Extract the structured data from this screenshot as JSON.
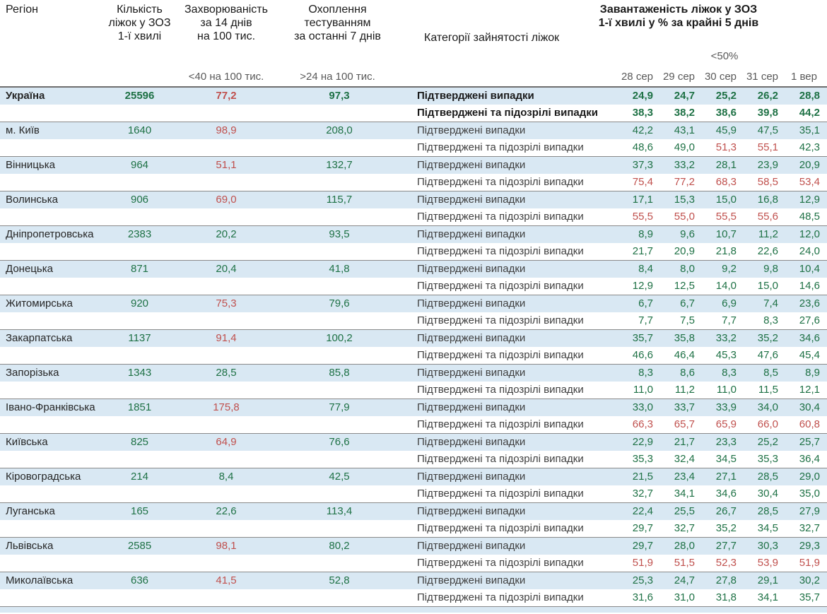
{
  "colors": {
    "green": "#1e7145",
    "red": "#c0504d",
    "row_highlight_blue": "#d9e8f3",
    "separator_gray": "#8a8a8a",
    "header_text": "#1a1a1a",
    "subheader_gray": "#595959"
  },
  "header": {
    "region": "Регіон",
    "beds": "Кількість\nліжок у ЗОЗ\n1-ї хвилі",
    "incidence": "Захворюваність\nза 14 днів\nна 100 тис.",
    "testing": "Охоплення\nтестуванням\nза останні 7 днів",
    "categories": "Категорії зайнятості ліжок",
    "occupancy": "Завантаженість ліжок у ЗОЗ\n1-ї хвилі у % за крайні 5 днів",
    "norms": {
      "incidence": "<40 на 100 тис.",
      "testing": ">24 на 100 тис.",
      "occupancy": "<50%"
    }
  },
  "chart_data": {
    "type": "table",
    "date_columns": [
      "28 сер",
      "29 сер",
      "30 сер",
      "31 сер",
      "1 вер"
    ],
    "category_labels": {
      "confirmed": "Підтверджені випадки",
      "confirmed_suspected": "Підтверджені та підозрілі випадки"
    },
    "thresholds": {
      "incidence_red_at": 40,
      "testing_green_above": 24,
      "occupancy_red_at": 50
    },
    "rows": [
      {
        "name": "Україна",
        "bold": true,
        "beds": 25596,
        "incidence": 77.2,
        "testing": 97.3,
        "confirmed": [
          24.9,
          24.7,
          25.2,
          26.2,
          28.8
        ],
        "confirmed_suspected": [
          38.3,
          38.2,
          38.6,
          39.8,
          44.2
        ]
      },
      {
        "name": "м. Київ",
        "beds": 1640,
        "incidence": 98.9,
        "testing": 208.0,
        "confirmed": [
          42.2,
          43.1,
          45.9,
          47.5,
          35.1
        ],
        "confirmed_suspected": [
          48.6,
          49.0,
          51.3,
          55.1,
          42.3
        ]
      },
      {
        "name": "Вінницька",
        "beds": 964,
        "incidence": 51.1,
        "testing": 132.7,
        "confirmed": [
          37.3,
          33.2,
          28.1,
          23.9,
          20.9
        ],
        "confirmed_suspected": [
          75.4,
          77.2,
          68.3,
          58.5,
          53.4
        ]
      },
      {
        "name": "Волинська",
        "beds": 906,
        "incidence": 69.0,
        "testing": 115.7,
        "confirmed": [
          17.1,
          15.3,
          15.0,
          16.8,
          12.9
        ],
        "confirmed_suspected": [
          55.5,
          55.0,
          55.5,
          55.6,
          48.5
        ]
      },
      {
        "name": "Дніпропетровська",
        "beds": 2383,
        "incidence": 20.2,
        "testing": 93.5,
        "confirmed": [
          8.9,
          9.6,
          10.7,
          11.2,
          12.0
        ],
        "confirmed_suspected": [
          21.7,
          20.9,
          21.8,
          22.6,
          24.0
        ]
      },
      {
        "name": "Донецька",
        "beds": 871,
        "incidence": 20.4,
        "testing": 41.8,
        "confirmed": [
          8.4,
          8.0,
          9.2,
          9.8,
          10.4
        ],
        "confirmed_suspected": [
          12.9,
          12.5,
          14.0,
          15.0,
          14.6
        ]
      },
      {
        "name": "Житомирська",
        "beds": 920,
        "incidence": 75.3,
        "testing": 79.6,
        "confirmed": [
          6.7,
          6.7,
          6.9,
          7.4,
          23.6
        ],
        "confirmed_suspected": [
          7.7,
          7.5,
          7.7,
          8.3,
          27.6
        ]
      },
      {
        "name": "Закарпатська",
        "beds": 1137,
        "incidence": 91.4,
        "testing": 100.2,
        "confirmed": [
          35.7,
          35.8,
          33.2,
          35.2,
          34.6
        ],
        "confirmed_suspected": [
          46.6,
          46.4,
          45.3,
          47.6,
          45.4
        ]
      },
      {
        "name": "Запорізька",
        "beds": 1343,
        "incidence": 28.5,
        "testing": 85.8,
        "confirmed": [
          8.3,
          8.6,
          8.3,
          8.5,
          8.9
        ],
        "confirmed_suspected": [
          11.0,
          11.2,
          11.0,
          11.5,
          12.1
        ]
      },
      {
        "name": "Івано-Франківська",
        "beds": 1851,
        "incidence": 175.8,
        "testing": 77.9,
        "confirmed": [
          33.0,
          33.7,
          33.9,
          34.0,
          30.4
        ],
        "confirmed_suspected": [
          66.3,
          65.7,
          65.9,
          66.0,
          60.8
        ]
      },
      {
        "name": "Київська",
        "beds": 825,
        "incidence": 64.9,
        "testing": 76.6,
        "confirmed": [
          22.9,
          21.7,
          23.3,
          25.2,
          25.7
        ],
        "confirmed_suspected": [
          35.3,
          32.4,
          34.5,
          35.3,
          36.4
        ]
      },
      {
        "name": "Кіровоградська",
        "beds": 214,
        "incidence": 8.4,
        "testing": 42.5,
        "confirmed": [
          21.5,
          23.4,
          27.1,
          28.5,
          29.0
        ],
        "confirmed_suspected": [
          32.7,
          34.1,
          34.6,
          30.4,
          35.0
        ]
      },
      {
        "name": "Луганська",
        "beds": 165,
        "incidence": 22.6,
        "testing": 113.4,
        "confirmed": [
          22.4,
          25.5,
          26.7,
          28.5,
          27.9
        ],
        "confirmed_suspected": [
          29.7,
          32.7,
          35.2,
          34.5,
          32.7
        ]
      },
      {
        "name": "Львівська",
        "beds": 2585,
        "incidence": 98.1,
        "testing": 80.2,
        "confirmed": [
          29.7,
          28.0,
          27.7,
          30.3,
          29.3
        ],
        "confirmed_suspected": [
          51.9,
          51.5,
          52.3,
          53.9,
          51.9
        ]
      },
      {
        "name": "Миколаївська",
        "beds": 636,
        "incidence": 41.5,
        "testing": 52.8,
        "confirmed": [
          25.3,
          24.7,
          27.8,
          29.1,
          30.2
        ],
        "confirmed_suspected": [
          31.6,
          31.0,
          31.8,
          34.1,
          35.7
        ]
      }
    ]
  }
}
